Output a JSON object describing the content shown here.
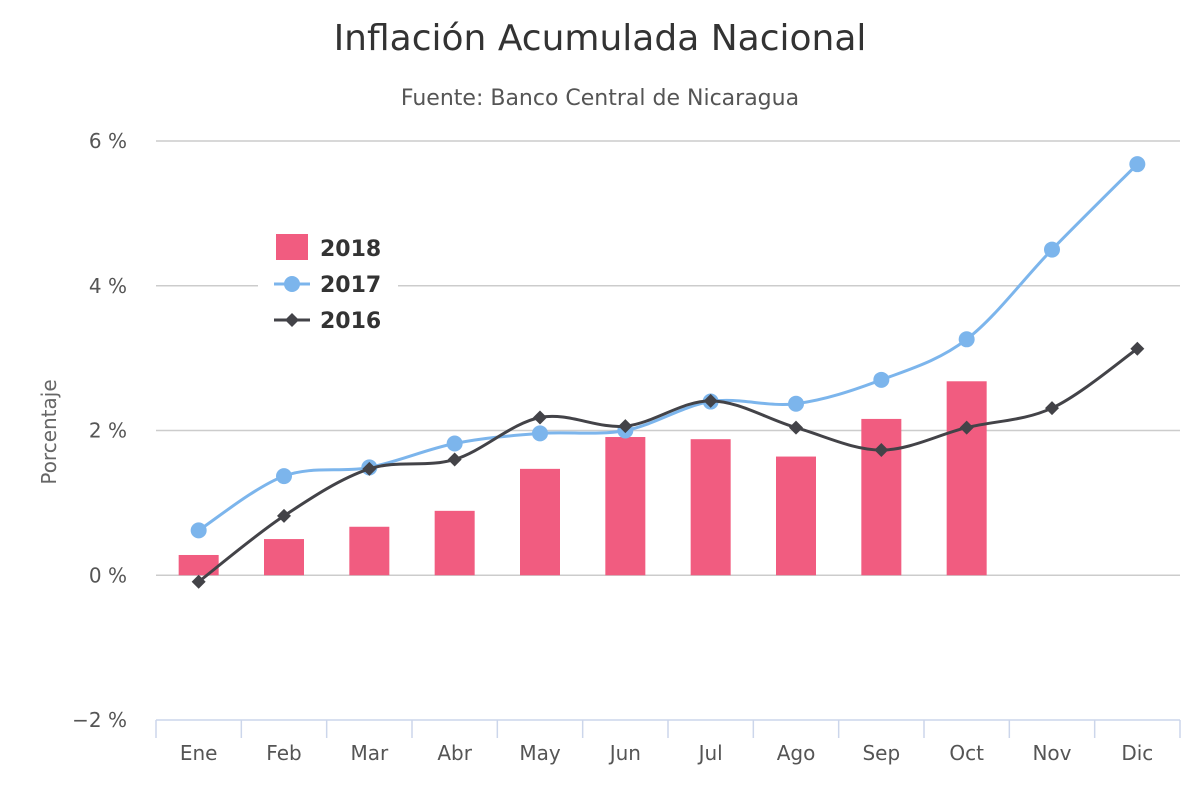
{
  "chart_data": {
    "type": "bar",
    "title": "Inflación Acumulada Nacional",
    "subtitle": "Fuente: Banco Central de Nicaragua",
    "ylabel": "Porcentaje",
    "xlabel": "",
    "ylim": [
      -2,
      6
    ],
    "yticks": [
      -2,
      0,
      2,
      4,
      6
    ],
    "ytick_suffix": " %",
    "categories": [
      "Ene",
      "Feb",
      "Mar",
      "Abr",
      "May",
      "Jun",
      "Jul",
      "Ago",
      "Sep",
      "Oct",
      "Nov",
      "Dic"
    ],
    "grid": true,
    "legend_position": "top-left",
    "series": [
      {
        "name": "2018",
        "type": "bar",
        "color": "#f15c80",
        "values": [
          0.28,
          0.5,
          0.67,
          0.89,
          1.47,
          1.91,
          1.88,
          1.64,
          2.16,
          2.68,
          null,
          null
        ]
      },
      {
        "name": "2017",
        "type": "line",
        "marker": "circle",
        "color": "#7cb5ec",
        "values": [
          0.62,
          1.37,
          1.49,
          1.82,
          1.96,
          2.0,
          2.4,
          2.37,
          2.7,
          3.26,
          4.5,
          5.68
        ]
      },
      {
        "name": "2016",
        "type": "line",
        "marker": "diamond",
        "color": "#434348",
        "values": [
          -0.09,
          0.82,
          1.47,
          1.6,
          2.18,
          2.06,
          2.41,
          2.04,
          1.73,
          2.04,
          2.31,
          3.13
        ]
      }
    ]
  }
}
